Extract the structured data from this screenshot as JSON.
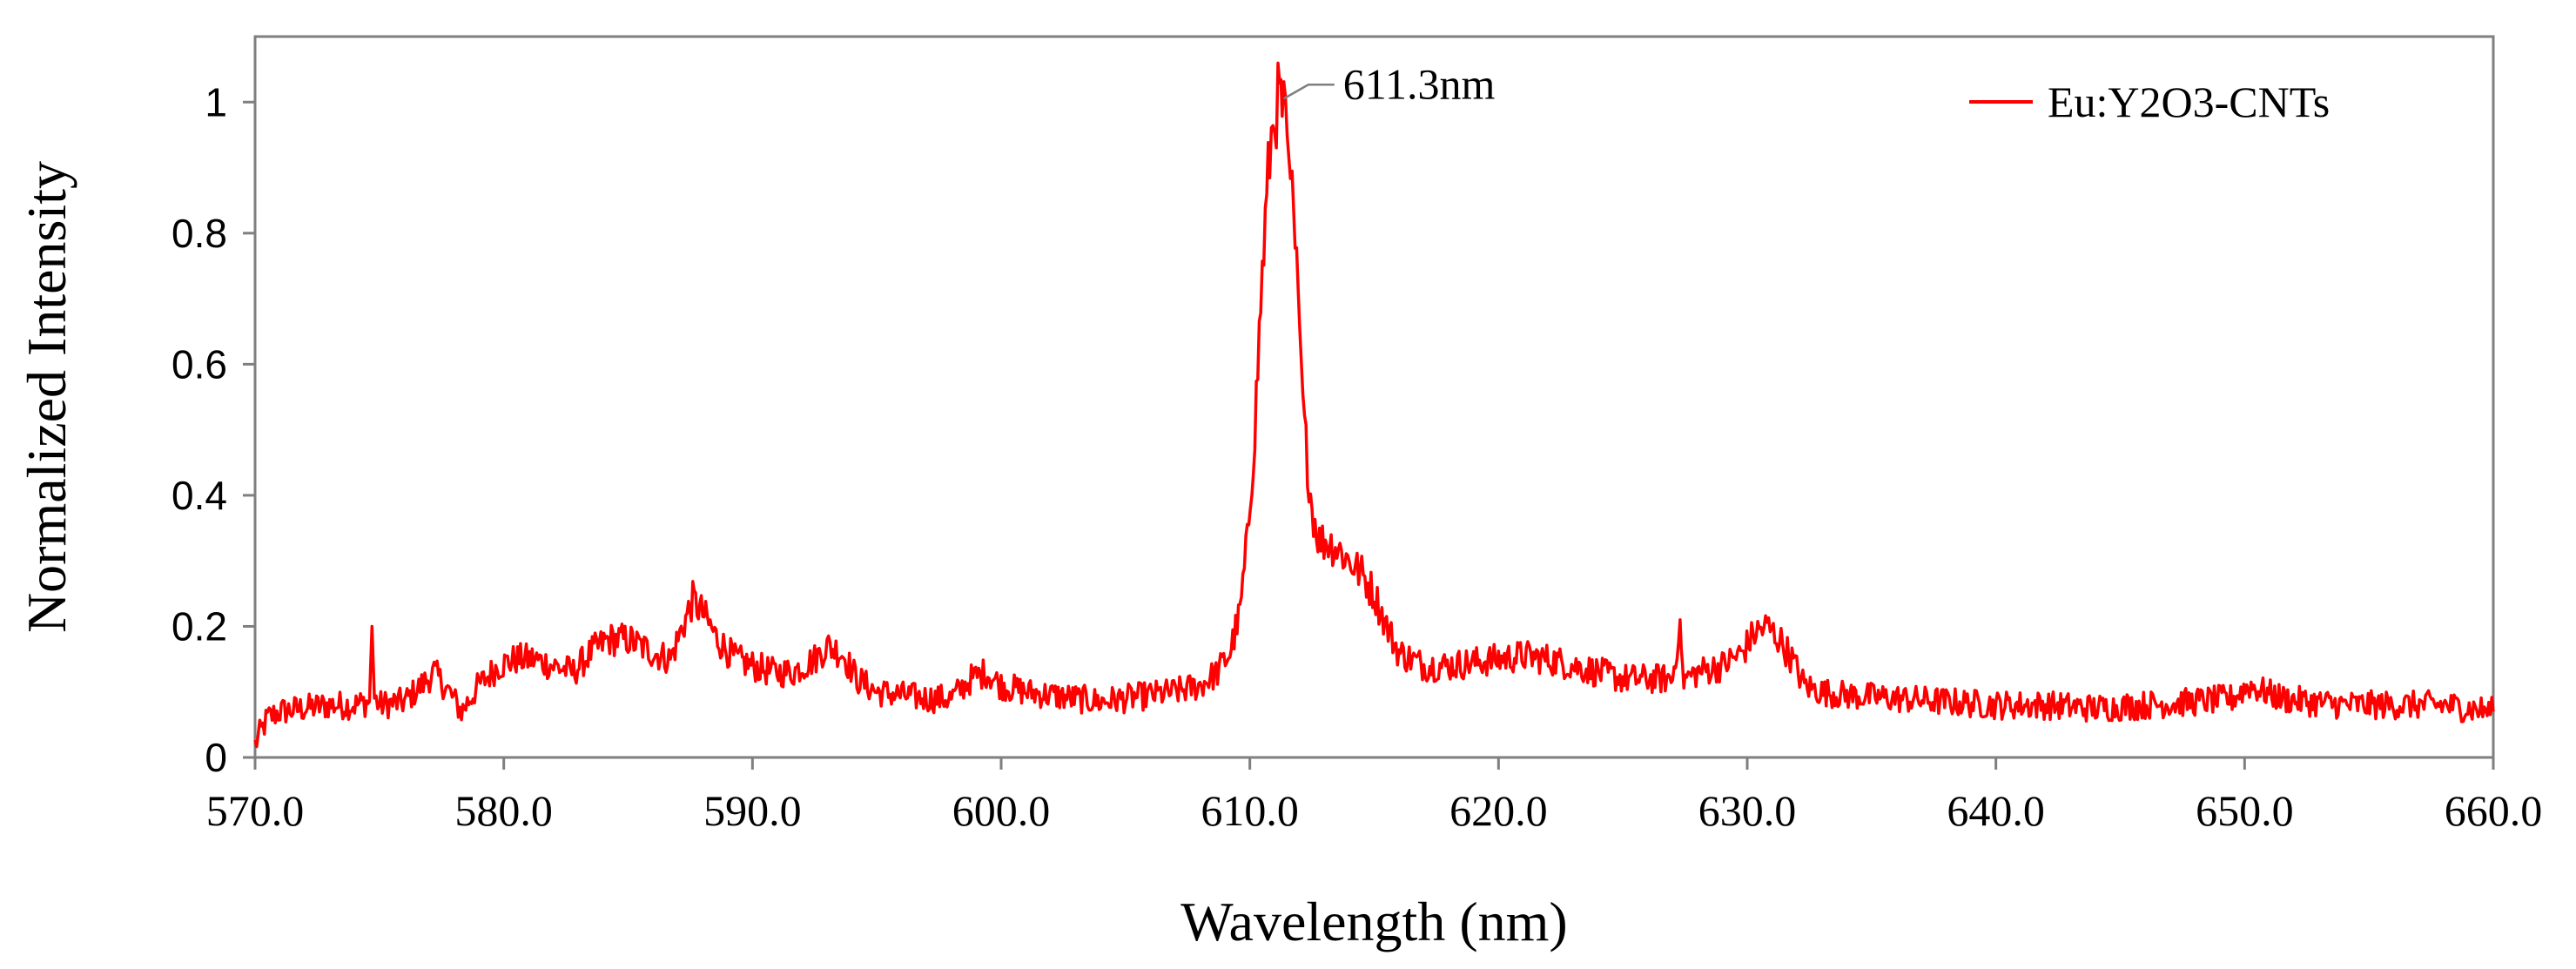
{
  "chart_data": {
    "type": "line",
    "title": "",
    "xlabel": "Wavelength (nm)",
    "ylabel": "Normalized Intensity",
    "xlim": [
      570,
      660
    ],
    "ylim": [
      0,
      1.1
    ],
    "x_ticks": [
      570,
      580,
      590,
      600,
      610,
      620,
      630,
      640,
      650,
      660
    ],
    "x_tick_labels": [
      "570.0",
      "580.0",
      "590.0",
      "600.0",
      "610.0",
      "620.0",
      "630.0",
      "640.0",
      "650.0",
      "660.0"
    ],
    "y_ticks": [
      0,
      0.2,
      0.4,
      0.6,
      0.8,
      1
    ],
    "y_tick_labels": [
      "0",
      "0.2",
      "0.4",
      "0.6",
      "0.8",
      "1"
    ],
    "grid": false,
    "legend": {
      "position": "top-right"
    },
    "series": [
      {
        "name": "Eu:Y2O3-CNTs",
        "color": "#ff0000",
        "x": [
          570.0,
          570.5,
          571.0,
          572.0,
          573.0,
          574.0,
          574.6,
          574.7,
          574.8,
          575.0,
          576.0,
          576.7,
          577.2,
          577.8,
          578.3,
          579.0,
          579.8,
          580.5,
          581.2,
          582.0,
          582.8,
          583.5,
          584.2,
          585.0,
          586.0,
          586.7,
          587.2,
          587.6,
          588.0,
          588.6,
          589.3,
          590.0,
          590.8,
          591.6,
          592.5,
          593.0,
          593.6,
          594.2,
          595.0,
          596.0,
          597.0,
          598.0,
          598.8,
          599.4,
          600.0,
          601.0,
          602.0,
          603.0,
          604.0,
          605.0,
          606.0,
          607.0,
          608.0,
          608.7,
          609.2,
          609.6,
          609.9,
          610.2,
          610.5,
          610.8,
          611.0,
          611.2,
          611.3,
          611.5,
          611.7,
          612.0,
          612.2,
          612.5,
          612.8,
          613.1,
          613.5,
          614.0,
          614.5,
          615.0,
          615.5,
          616.0,
          617.0,
          618.0,
          619.0,
          620.0,
          621.0,
          622.0,
          623.0,
          624.0,
          625.0,
          626.0,
          627.0,
          627.3,
          627.4,
          627.5,
          628.0,
          629.0,
          629.8,
          630.3,
          630.8,
          631.3,
          631.8,
          632.3,
          633.0,
          634.0,
          636.0,
          638.0,
          640.0,
          642.0,
          644.0,
          646.0,
          648.0,
          649.5,
          650.2,
          650.8,
          651.5,
          652.5,
          654.0,
          656.0,
          658.0,
          660.0
        ],
        "values": [
          0.02,
          0.06,
          0.07,
          0.075,
          0.08,
          0.08,
          0.085,
          0.2,
          0.09,
          0.08,
          0.085,
          0.11,
          0.13,
          0.1,
          0.07,
          0.11,
          0.14,
          0.15,
          0.15,
          0.14,
          0.13,
          0.16,
          0.18,
          0.18,
          0.16,
          0.15,
          0.2,
          0.24,
          0.22,
          0.18,
          0.15,
          0.14,
          0.13,
          0.13,
          0.15,
          0.17,
          0.16,
          0.12,
          0.1,
          0.095,
          0.09,
          0.09,
          0.12,
          0.13,
          0.11,
          0.1,
          0.095,
          0.09,
          0.085,
          0.09,
          0.095,
          0.1,
          0.11,
          0.13,
          0.16,
          0.22,
          0.33,
          0.5,
          0.74,
          0.92,
          0.99,
          1.0,
          0.99,
          0.95,
          0.85,
          0.66,
          0.5,
          0.38,
          0.33,
          0.33,
          0.32,
          0.3,
          0.28,
          0.25,
          0.2,
          0.16,
          0.14,
          0.14,
          0.145,
          0.15,
          0.155,
          0.15,
          0.14,
          0.13,
          0.12,
          0.12,
          0.12,
          0.21,
          0.12,
          0.12,
          0.13,
          0.14,
          0.16,
          0.19,
          0.2,
          0.18,
          0.15,
          0.11,
          0.1,
          0.095,
          0.09,
          0.085,
          0.08,
          0.08,
          0.075,
          0.08,
          0.085,
          0.09,
          0.11,
          0.1,
          0.09,
          0.085,
          0.08,
          0.08,
          0.08,
          0.07
        ]
      }
    ],
    "annotations": [
      {
        "text": "611.3nm",
        "x": 611.3,
        "y": 1.0
      }
    ]
  }
}
